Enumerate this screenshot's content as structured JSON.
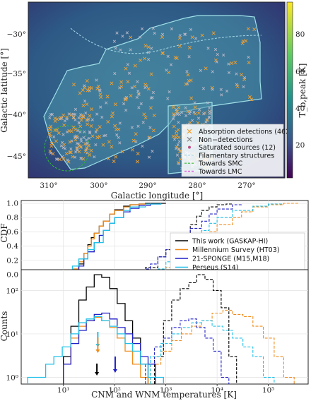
{
  "chart_data": [
    {
      "type": "scatter",
      "xlabel": "Galactic longitude [°]",
      "ylabel": "Galactic latitude [°]",
      "xticks": [
        "310°",
        "300°",
        "290°",
        "280°",
        "270°"
      ],
      "yticks": [
        "−30°",
        "−35°",
        "−40°",
        "−45°"
      ],
      "xlim": [
        313,
        262
      ],
      "ylim": [
        -48.5,
        -25.8
      ],
      "colorbar": {
        "label": "T_b,peak [K]",
        "ticks": [
          "20",
          "40",
          "60",
          "80"
        ],
        "range": [
          0,
          95
        ],
        "colormap": "viridis"
      },
      "legend_position": "lower-right",
      "legend": [
        {
          "label": "Absorption detections (462)",
          "marker": "x",
          "color": "#f0a030"
        },
        {
          "label": "Non−detections",
          "marker": "x",
          "color": "#888888"
        },
        {
          "label": "Saturated sources (12)",
          "marker": "dot",
          "color": "#c05088"
        },
        {
          "label": "Filamentary structures",
          "line": "dashed",
          "color": "#a8d8e8"
        },
        {
          "label": "Towards SMC",
          "line": "dashed",
          "color": "#33bb33"
        },
        {
          "label": "Towards LMC",
          "line": "dashed",
          "color": "#dd44dd"
        }
      ]
    },
    {
      "type": "line",
      "ylabel": "CDF",
      "xscale": "log",
      "xlim": [
        1.5,
        600000.0
      ],
      "ylim": [
        -0.05,
        1.05
      ],
      "yticks": [
        "0.0",
        "0.2",
        "0.4",
        "0.6",
        "0.8",
        "1.0"
      ],
      "legend_position": "right",
      "series": [
        {
          "name": "This work (GASKAP-HI)",
          "color": "#000000",
          "cnm_x": [
            10,
            15,
            20,
            25,
            30,
            35,
            40,
            50,
            60,
            80,
            100,
            150,
            200,
            300,
            400,
            700,
            1000
          ],
          "cnm_y": [
            0.0,
            0.05,
            0.15,
            0.3,
            0.42,
            0.52,
            0.58,
            0.68,
            0.75,
            0.85,
            0.91,
            0.96,
            0.98,
            0.99,
            1.0,
            1.0,
            1.0
          ],
          "wnm_x": [
            200,
            400,
            700,
            1000,
            1500,
            2000,
            3000,
            4000,
            5000,
            7000,
            10000,
            15000,
            20000
          ],
          "wnm_y": [
            0.0,
            0.1,
            0.25,
            0.35,
            0.45,
            0.55,
            0.7,
            0.82,
            0.9,
            0.95,
            0.98,
            0.99,
            1.0
          ]
        },
        {
          "name": "Millennium Survey (HT03)",
          "color": "#f08c1c",
          "cnm_x": [
            10,
            15,
            20,
            25,
            30,
            35,
            40,
            50,
            60,
            80,
            100,
            150,
            200,
            300,
            500
          ],
          "cnm_y": [
            0.0,
            0.08,
            0.18,
            0.3,
            0.4,
            0.5,
            0.58,
            0.68,
            0.75,
            0.85,
            0.9,
            0.95,
            0.98,
            0.99,
            1.0
          ],
          "wnm_x": [
            500,
            700,
            1000,
            1500,
            2000,
            3000,
            5000,
            7000,
            10000,
            20000,
            30000,
            50000,
            100000,
            200000,
            400000
          ],
          "wnm_y": [
            0.0,
            0.05,
            0.1,
            0.2,
            0.3,
            0.4,
            0.5,
            0.6,
            0.7,
            0.8,
            0.88,
            0.95,
            0.98,
            1.0,
            1.0
          ]
        },
        {
          "name": "21-SPONGE (M15,M18)",
          "color": "#2020c8",
          "cnm_x": [
            10,
            15,
            20,
            25,
            30,
            40,
            50,
            60,
            80,
            100,
            150,
            200,
            300,
            500,
            800
          ],
          "cnm_y": [
            0.0,
            0.05,
            0.12,
            0.22,
            0.32,
            0.45,
            0.55,
            0.62,
            0.72,
            0.8,
            0.88,
            0.93,
            0.97,
            0.99,
            1.0
          ],
          "wnm_x": [
            300,
            400,
            500,
            700,
            1000,
            1500,
            2000,
            3000,
            5000,
            7000,
            10000,
            20000,
            30000
          ],
          "wnm_y": [
            0.0,
            0.08,
            0.15,
            0.25,
            0.35,
            0.45,
            0.55,
            0.65,
            0.75,
            0.85,
            0.92,
            0.98,
            1.0
          ]
        },
        {
          "name": "Perseus (S14)",
          "color": "#20c0e8",
          "cnm_x": [
            2,
            3,
            5,
            8,
            10,
            15,
            20,
            30,
            40,
            60,
            80,
            100,
            150,
            200,
            400,
            800
          ],
          "cnm_y": [
            0.0,
            0.01,
            0.02,
            0.03,
            0.05,
            0.12,
            0.22,
            0.35,
            0.45,
            0.62,
            0.72,
            0.8,
            0.9,
            0.95,
            0.99,
            1.0
          ],
          "wnm_x": [
            500,
            700,
            1000,
            1500,
            2000,
            3000,
            5000,
            7000,
            10000,
            20000,
            50000,
            100000,
            200000
          ],
          "wnm_y": [
            0.0,
            0.08,
            0.18,
            0.3,
            0.4,
            0.5,
            0.62,
            0.72,
            0.8,
            0.9,
            0.96,
            0.99,
            1.0
          ]
        }
      ]
    },
    {
      "type": "line",
      "ylabel": "Counts",
      "xlabel": "CNM and WNM temperatures [K]",
      "xscale": "log",
      "yscale": "log",
      "xlim": [
        1.5,
        600000.0
      ],
      "ylim": [
        0.7,
        300
      ],
      "xticks": [
        "10¹",
        "10²",
        "10³",
        "10⁴",
        "10⁵"
      ],
      "yticks": [
        "10⁰",
        "10¹",
        "10²"
      ],
      "series": [
        {
          "name": "This work (GASKAP-HI)",
          "color": "#000000",
          "cnm_edges": [
            10,
            14,
            20,
            28,
            40,
            56,
            80,
            112,
            160,
            224,
            320,
            450
          ],
          "cnm_counts": [
            3,
            15,
            60,
            120,
            230,
            200,
            110,
            50,
            20,
            8,
            2
          ],
          "wnm_edges": [
            600,
            900,
            1300,
            1900,
            2800,
            4000,
            5800,
            8400,
            12000,
            17000,
            24000
          ],
          "wnm_counts": [
            3,
            20,
            60,
            110,
            150,
            230,
            180,
            100,
            40,
            3
          ]
        },
        {
          "name": "Millennium Survey (HT03)",
          "color": "#f08c1c",
          "cnm_edges": [
            10,
            14,
            20,
            28,
            40,
            56,
            80,
            112,
            160,
            224,
            320,
            450
          ],
          "cnm_counts": [
            2,
            8,
            15,
            20,
            24,
            20,
            14,
            8,
            4,
            2,
            1
          ],
          "wnm_edges": [
            500,
            800,
            1300,
            2000,
            3200,
            5000,
            8000,
            13000,
            20000,
            32000,
            50000,
            80000,
            130000,
            200000,
            320000
          ],
          "wnm_counts": [
            2,
            4,
            7,
            10,
            15,
            20,
            30,
            35,
            28,
            25,
            15,
            8,
            3,
            1
          ]
        },
        {
          "name": "21-SPONGE (M15,M18)",
          "color": "#2020c8",
          "cnm_edges": [
            10,
            14,
            20,
            28,
            40,
            56,
            80,
            112,
            160,
            224,
            320,
            450,
            630
          ],
          "cnm_counts": [
            2,
            6,
            12,
            20,
            28,
            30,
            22,
            14,
            10,
            6,
            3,
            2
          ],
          "wnm_edges": [
            400,
            600,
            900,
            1300,
            1900,
            2800,
            4000,
            5800,
            8400,
            12000,
            17000
          ],
          "wnm_counts": [
            2,
            5,
            8,
            14,
            20,
            22,
            14,
            8,
            4,
            1
          ]
        },
        {
          "name": "Perseus (S14)",
          "color": "#20c0e8",
          "cnm_edges": [
            2,
            3,
            4.5,
            6.5,
            9.5,
            14,
            20,
            28,
            40,
            56,
            80,
            112,
            160,
            224,
            320,
            450,
            630,
            900
          ],
          "cnm_counts": [
            1,
            1,
            2,
            3,
            5,
            10,
            18,
            22,
            25,
            20,
            15,
            10,
            6,
            4,
            2,
            1,
            1
          ],
          "wnm_edges": [
            500,
            800,
            1300,
            2000,
            3200,
            5000,
            8000,
            13000,
            20000,
            32000,
            50000,
            80000,
            130000
          ],
          "wnm_counts": [
            3,
            6,
            10,
            14,
            18,
            20,
            15,
            12,
            8,
            5,
            3,
            1
          ]
        }
      ],
      "arrows": [
        {
          "x": 50,
          "color": "#20c0e8",
          "label": ""
        },
        {
          "x": 50,
          "color": "#f08c1c",
          "label": ""
        },
        {
          "x": 48,
          "color": "#000000",
          "label": ""
        },
        {
          "x": 70,
          "color": "#2020c8",
          "label": ""
        }
      ]
    }
  ]
}
